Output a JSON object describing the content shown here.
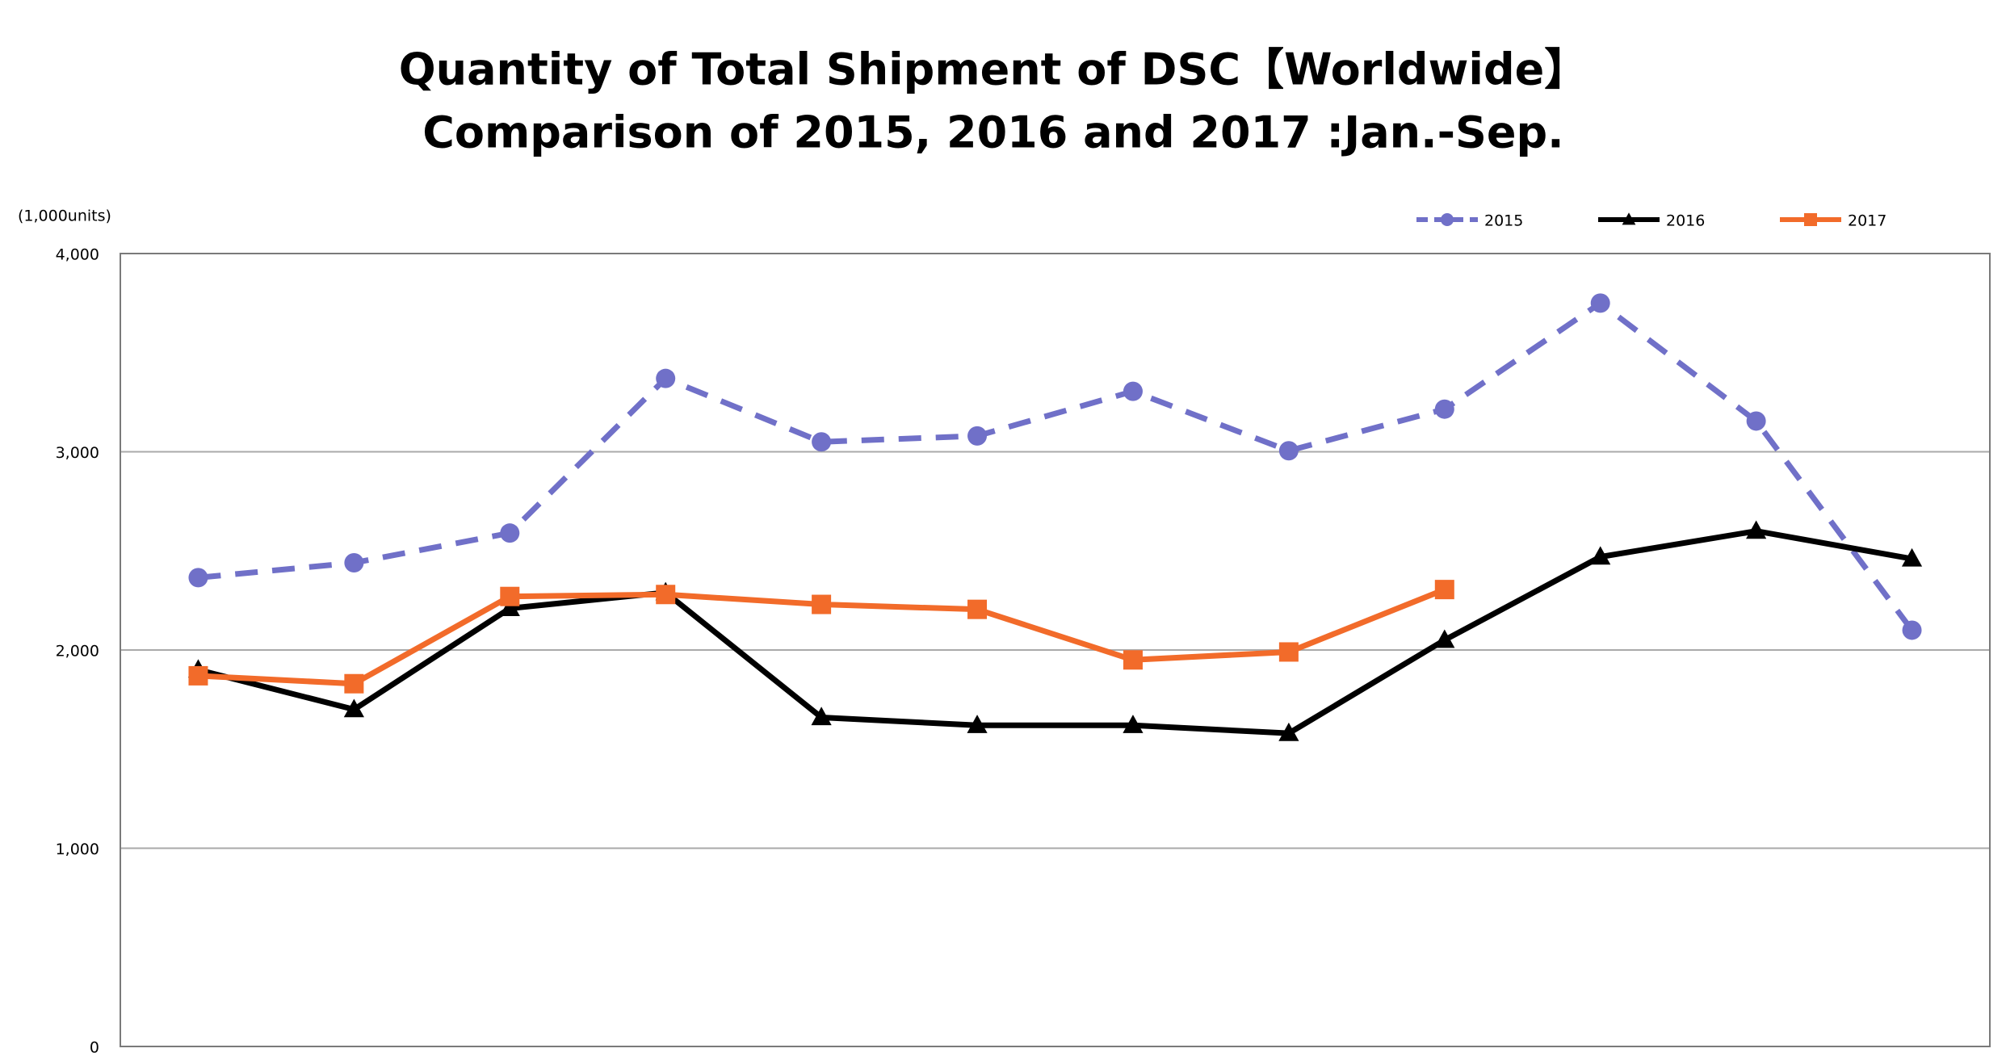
{
  "chart_data": {
    "type": "line",
    "title": "Quantity of Total Shipment of DSC【Worldwide】",
    "subtitle": "Comparison of 2015, 2016 and 2017 :Jan.-Sep.",
    "y_label": "(1,000units)",
    "categories": [
      null,
      null,
      null,
      null,
      null,
      null,
      null,
      null,
      null,
      null,
      null,
      null
    ],
    "series": [
      {
        "name": "2015",
        "color": "#7070c8",
        "dash": true,
        "marker": "circle",
        "values": [
          2365,
          2440,
          2590,
          3370,
          3050,
          3080,
          3305,
          3005,
          3215,
          3750,
          3155,
          2100
        ]
      },
      {
        "name": "2016",
        "color": "#000000",
        "dash": false,
        "marker": "triangle",
        "values": [
          1900,
          1700,
          2210,
          2290,
          1660,
          1620,
          1620,
          1580,
          2050,
          2470,
          2600,
          2460
        ]
      },
      {
        "name": "2017",
        "color": "#f26b2a",
        "dash": false,
        "marker": "square",
        "values": [
          1870,
          1830,
          2270,
          2280,
          2230,
          2205,
          1950,
          1990,
          2305,
          null,
          null,
          null
        ]
      }
    ],
    "ylim": [
      0,
      4000
    ],
    "yticks": [
      0,
      {
        "value": 1000,
        "label": "1,000"
      },
      {
        "value": 2000,
        "label": "2,000"
      },
      {
        "value": 3000,
        "label": "3,000"
      },
      {
        "value": 4000,
        "label": "4,000"
      }
    ],
    "grid": true,
    "legend": "top-right"
  }
}
